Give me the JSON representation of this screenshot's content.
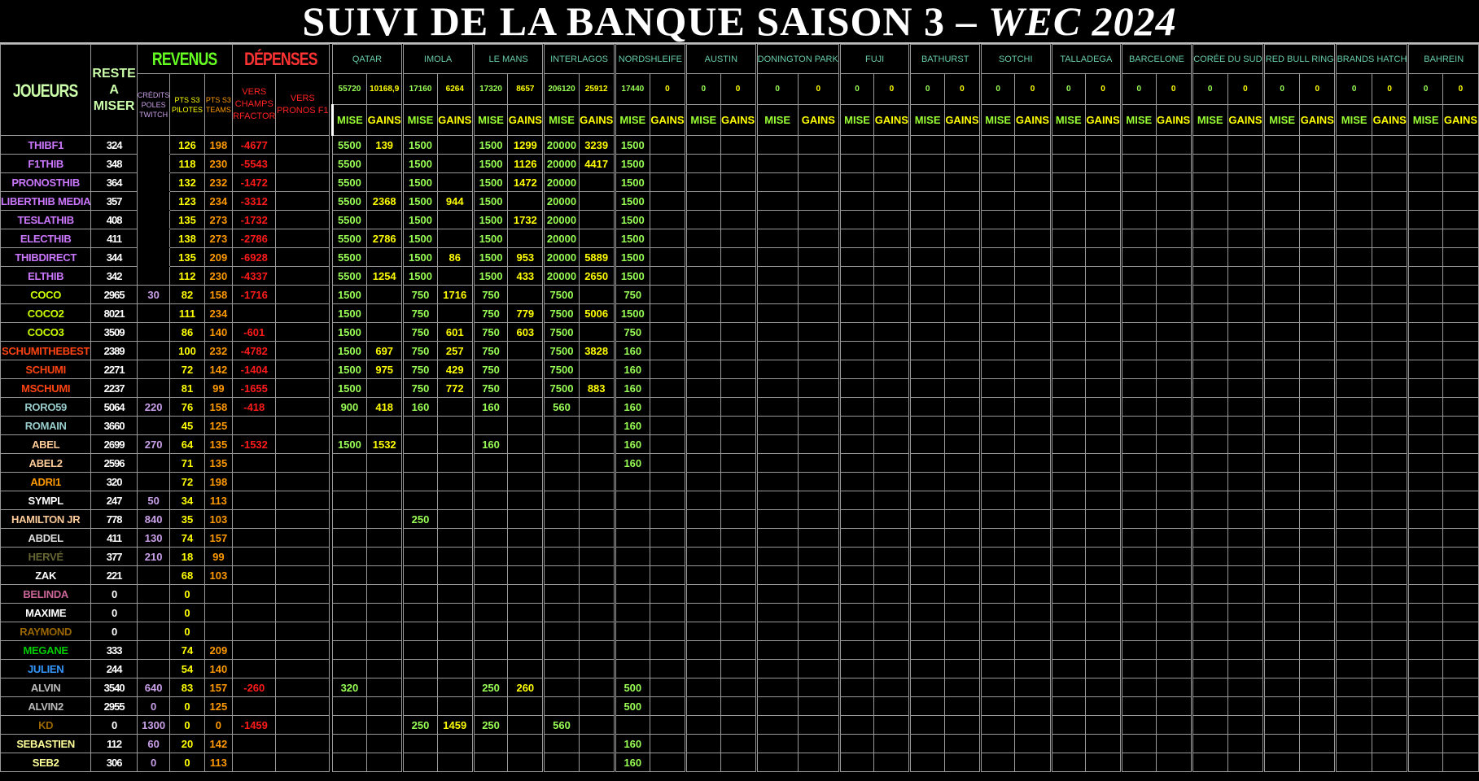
{
  "title": {
    "main": "SUIVI DE LA BANQUE SAISON 3 – ",
    "accent": "WEC 2024"
  },
  "headers": {
    "joueurs": "JOUEURS",
    "reste": "RESTE A MISER",
    "revenus": "REVENUS",
    "depenses": "DÉPENSES",
    "credits": "CRÉDITS POLES TWITCH",
    "pts_pilotes": "PTS S3 PILOTES",
    "pts_teams": "PTS S3 TEAMS",
    "vers_champs": "VERS CHAMPS RFACTOR",
    "vers_pronos": "VERS PRONOS F1",
    "mise": "MISE",
    "gains": "GAINS"
  },
  "races": [
    {
      "name": "QATAR",
      "mise_total": "55720",
      "gains_total": "10168,9"
    },
    {
      "name": "IMOLA",
      "mise_total": "17160",
      "gains_total": "6264"
    },
    {
      "name": "LE MANS",
      "mise_total": "17320",
      "gains_total": "8657"
    },
    {
      "name": "INTERLAGOS",
      "mise_total": "206120",
      "gains_total": "25912"
    },
    {
      "name": "NORDSHLEIFE",
      "mise_total": "17440",
      "gains_total": "0"
    },
    {
      "name": "AUSTIN",
      "mise_total": "0",
      "gains_total": "0"
    },
    {
      "name": "DONINGTON PARK",
      "mise_total": "0",
      "gains_total": "0"
    },
    {
      "name": "FUJI",
      "mise_total": "0",
      "gains_total": "0"
    },
    {
      "name": "BATHURST",
      "mise_total": "0",
      "gains_total": "0"
    },
    {
      "name": "SOTCHI",
      "mise_total": "0",
      "gains_total": "0"
    },
    {
      "name": "TALLADEGA",
      "mise_total": "0",
      "gains_total": "0"
    },
    {
      "name": "BARCELONE",
      "mise_total": "0",
      "gains_total": "0"
    },
    {
      "name": "CORÉE DU SUD",
      "mise_total": "0",
      "gains_total": "0"
    },
    {
      "name": "RED BULL RING",
      "mise_total": "0",
      "gains_total": "0"
    },
    {
      "name": "BRANDS HATCH",
      "mise_total": "0",
      "gains_total": "0"
    },
    {
      "name": "BAHREIN",
      "mise_total": "0",
      "gains_total": "0"
    }
  ],
  "players": [
    {
      "name": "THIBF1",
      "color": "#cc77ff",
      "reste": "324",
      "credits": "",
      "pilotes": "126",
      "teams": "198",
      "champs": "-4677",
      "pronos": "",
      "bets": [
        [
          "5500",
          "139"
        ],
        [
          "1500",
          ""
        ],
        [
          "1500",
          "1299"
        ],
        [
          "20000",
          "3239"
        ],
        [
          "1500",
          ""
        ]
      ]
    },
    {
      "name": "F1THIB",
      "color": "#cc77ff",
      "reste": "348",
      "credits": "",
      "pilotes": "118",
      "teams": "230",
      "champs": "-5543",
      "pronos": "",
      "bets": [
        [
          "5500",
          ""
        ],
        [
          "1500",
          ""
        ],
        [
          "1500",
          "1126"
        ],
        [
          "20000",
          "4417"
        ],
        [
          "1500",
          ""
        ]
      ]
    },
    {
      "name": "PRONOSTHIB",
      "color": "#cc77ff",
      "reste": "364",
      "credits": "",
      "pilotes": "132",
      "teams": "232",
      "champs": "-1472",
      "pronos": "",
      "bets": [
        [
          "5500",
          ""
        ],
        [
          "1500",
          ""
        ],
        [
          "1500",
          "1472"
        ],
        [
          "20000",
          ""
        ],
        [
          "1500",
          ""
        ]
      ]
    },
    {
      "name": "LIBERTHIB MEDIA",
      "color": "#cc77ff",
      "reste": "357",
      "credits": "",
      "pilotes": "123",
      "teams": "234",
      "champs": "-3312",
      "pronos": "",
      "bets": [
        [
          "5500",
          "2368"
        ],
        [
          "1500",
          "944"
        ],
        [
          "1500",
          ""
        ],
        [
          "20000",
          ""
        ],
        [
          "1500",
          ""
        ]
      ]
    },
    {
      "name": "TESLATHIB",
      "color": "#cc77ff",
      "reste": "408",
      "credits": "",
      "pilotes": "135",
      "teams": "273",
      "champs": "-1732",
      "pronos": "",
      "bets": [
        [
          "5500",
          ""
        ],
        [
          "1500",
          ""
        ],
        [
          "1500",
          "1732"
        ],
        [
          "20000",
          ""
        ],
        [
          "1500",
          ""
        ]
      ]
    },
    {
      "name": "ELECTHIB",
      "color": "#cc77ff",
      "reste": "411",
      "credits": "",
      "pilotes": "138",
      "teams": "273",
      "champs": "-2786",
      "pronos": "",
      "bets": [
        [
          "5500",
          "2786"
        ],
        [
          "1500",
          ""
        ],
        [
          "1500",
          ""
        ],
        [
          "20000",
          ""
        ],
        [
          "1500",
          ""
        ]
      ]
    },
    {
      "name": "THIBDIRECT",
      "color": "#cc77ff",
      "reste": "344",
      "credits": "",
      "pilotes": "135",
      "teams": "209",
      "champs": "-6928",
      "pronos": "",
      "bets": [
        [
          "5500",
          ""
        ],
        [
          "1500",
          "86"
        ],
        [
          "1500",
          "953"
        ],
        [
          "20000",
          "5889"
        ],
        [
          "1500",
          ""
        ]
      ]
    },
    {
      "name": "ELTHIB",
      "color": "#cc77ff",
      "reste": "342",
      "credits": "",
      "pilotes": "112",
      "teams": "230",
      "champs": "-4337",
      "pronos": "",
      "bets": [
        [
          "5500",
          "1254"
        ],
        [
          "1500",
          ""
        ],
        [
          "1500",
          "433"
        ],
        [
          "20000",
          "2650"
        ],
        [
          "1500",
          ""
        ]
      ]
    },
    {
      "name": "COCO",
      "color": "#ccff00",
      "reste": "2965",
      "credits": "30",
      "pilotes": "82",
      "teams": "158",
      "champs": "-1716",
      "pronos": "",
      "bets": [
        [
          "1500",
          ""
        ],
        [
          "750",
          "1716"
        ],
        [
          "750",
          ""
        ],
        [
          "7500",
          ""
        ],
        [
          "750",
          ""
        ]
      ]
    },
    {
      "name": "COCO2",
      "color": "#ccff00",
      "reste": "8021",
      "credits": "",
      "pilotes": "111",
      "teams": "234",
      "champs": "",
      "pronos": "",
      "bets": [
        [
          "1500",
          ""
        ],
        [
          "750",
          ""
        ],
        [
          "750",
          "779"
        ],
        [
          "7500",
          "5006"
        ],
        [
          "1500",
          ""
        ]
      ]
    },
    {
      "name": "COCO3",
      "color": "#ccff00",
      "reste": "3509",
      "credits": "",
      "pilotes": "86",
      "teams": "140",
      "champs": "-601",
      "pronos": "",
      "bets": [
        [
          "1500",
          ""
        ],
        [
          "750",
          "601"
        ],
        [
          "750",
          "603"
        ],
        [
          "7500",
          ""
        ],
        [
          "750",
          ""
        ]
      ]
    },
    {
      "name": "SCHUMITHEBEST",
      "color": "#ff4411",
      "reste": "2389",
      "credits": "",
      "pilotes": "100",
      "teams": "232",
      "champs": "-4782",
      "pronos": "",
      "bets": [
        [
          "1500",
          "697"
        ],
        [
          "750",
          "257"
        ],
        [
          "750",
          ""
        ],
        [
          "7500",
          "3828"
        ],
        [
          "160",
          ""
        ]
      ]
    },
    {
      "name": "SCHUMI",
      "color": "#ff4411",
      "reste": "2271",
      "credits": "",
      "pilotes": "72",
      "teams": "142",
      "champs": "-1404",
      "pronos": "",
      "bets": [
        [
          "1500",
          "975"
        ],
        [
          "750",
          "429"
        ],
        [
          "750",
          ""
        ],
        [
          "7500",
          ""
        ],
        [
          "160",
          ""
        ]
      ]
    },
    {
      "name": "MSCHUMI",
      "color": "#ff4411",
      "reste": "2237",
      "credits": "",
      "pilotes": "81",
      "teams": "99",
      "champs": "-1655",
      "pronos": "",
      "bets": [
        [
          "1500",
          ""
        ],
        [
          "750",
          "772"
        ],
        [
          "750",
          ""
        ],
        [
          "7500",
          "883"
        ],
        [
          "160",
          ""
        ]
      ]
    },
    {
      "name": "RORO59",
      "color": "#99cccc",
      "reste": "5064",
      "credits": "220",
      "pilotes": "76",
      "teams": "158",
      "champs": "-418",
      "pronos": "",
      "bets": [
        [
          "900",
          "418"
        ],
        [
          "160",
          ""
        ],
        [
          "160",
          ""
        ],
        [
          "560",
          ""
        ],
        [
          "160",
          ""
        ]
      ]
    },
    {
      "name": "ROMAIN",
      "color": "#99cccc",
      "reste": "3660",
      "credits": "",
      "pilotes": "45",
      "teams": "125",
      "champs": "",
      "pronos": "",
      "bets": [
        [
          "",
          ""
        ],
        [
          "",
          ""
        ],
        [
          "",
          ""
        ],
        [
          "",
          ""
        ],
        [
          "160",
          ""
        ]
      ]
    },
    {
      "name": "ABEL",
      "color": "#ffcc99",
      "reste": "2699",
      "credits": "270",
      "pilotes": "64",
      "teams": "135",
      "champs": "-1532",
      "pronos": "",
      "bets": [
        [
          "1500",
          "1532"
        ],
        [
          "",
          ""
        ],
        [
          "160",
          ""
        ],
        [
          "",
          ""
        ],
        [
          "160",
          ""
        ]
      ]
    },
    {
      "name": "ABEL2",
      "color": "#ffcc99",
      "reste": "2596",
      "credits": "",
      "pilotes": "71",
      "teams": "135",
      "champs": "",
      "pronos": "",
      "bets": [
        [
          "",
          ""
        ],
        [
          "",
          ""
        ],
        [
          "",
          ""
        ],
        [
          "",
          ""
        ],
        [
          "160",
          ""
        ]
      ]
    },
    {
      "name": "ADRI1",
      "color": "#ff9900",
      "reste": "320",
      "credits": "",
      "pilotes": "72",
      "teams": "198",
      "champs": "",
      "pronos": "",
      "bets": []
    },
    {
      "name": "SYMPL",
      "color": "#ffffff",
      "reste": "247",
      "credits": "50",
      "pilotes": "34",
      "teams": "113",
      "champs": "",
      "pronos": "",
      "bets": []
    },
    {
      "name": "HAMILTON JR",
      "color": "#ffcc99",
      "reste": "778",
      "credits": "840",
      "pilotes": "35",
      "teams": "103",
      "champs": "",
      "pronos": "",
      "bets": [
        [
          "",
          ""
        ],
        [
          "250",
          ""
        ]
      ]
    },
    {
      "name": "ABDEL",
      "color": "#dddddd",
      "reste": "411",
      "credits": "130",
      "pilotes": "74",
      "teams": "157",
      "champs": "",
      "pronos": "",
      "bets": []
    },
    {
      "name": "HERVÉ",
      "color": "#666633",
      "reste": "377",
      "credits": "210",
      "pilotes": "18",
      "teams": "99",
      "champs": "",
      "pronos": "",
      "bets": []
    },
    {
      "name": "ZAK",
      "color": "#ffffff",
      "reste": "221",
      "credits": "",
      "pilotes": "68",
      "teams": "103",
      "champs": "",
      "pronos": "",
      "bets": []
    },
    {
      "name": "BELINDA",
      "color": "#cc6699",
      "reste": "0",
      "credits": "",
      "pilotes": "0",
      "teams": "",
      "champs": "",
      "pronos": "",
      "bets": []
    },
    {
      "name": "MAXIME",
      "color": "#ffffff",
      "reste": "0",
      "credits": "",
      "pilotes": "0",
      "teams": "",
      "champs": "",
      "pronos": "",
      "bets": []
    },
    {
      "name": "RAYMOND",
      "color": "#996600",
      "reste": "0",
      "credits": "",
      "pilotes": "0",
      "teams": "",
      "champs": "",
      "pronos": "",
      "bets": []
    },
    {
      "name": "MEGANE",
      "color": "#00cc00",
      "reste": "333",
      "credits": "",
      "pilotes": "74",
      "teams": "209",
      "champs": "",
      "pronos": "",
      "bets": []
    },
    {
      "name": "JULIEN",
      "color": "#3399ff",
      "reste": "244",
      "credits": "",
      "pilotes": "54",
      "teams": "140",
      "champs": "",
      "pronos": "",
      "bets": []
    },
    {
      "name": "ALVIN",
      "color": "#bbbbbb",
      "reste": "3540",
      "credits": "640",
      "pilotes": "83",
      "teams": "157",
      "champs": "-260",
      "pronos": "",
      "bets": [
        [
          "320",
          ""
        ],
        [
          "",
          ""
        ],
        [
          "250",
          "260"
        ],
        [
          "",
          ""
        ],
        [
          "500",
          ""
        ]
      ]
    },
    {
      "name": "ALVIN2",
      "color": "#bbbbbb",
      "reste": "2955",
      "credits": "0",
      "pilotes": "0",
      "teams": "125",
      "champs": "",
      "pronos": "",
      "bets": [
        [
          "",
          ""
        ],
        [
          "",
          ""
        ],
        [
          "",
          ""
        ],
        [
          "",
          ""
        ],
        [
          "500",
          ""
        ]
      ]
    },
    {
      "name": "KD",
      "color": "#996600",
      "reste": "0",
      "credits": "1300",
      "pilotes": "0",
      "teams": "0",
      "champs": "-1459",
      "pronos": "",
      "bets": [
        [
          "",
          ""
        ],
        [
          "250",
          "1459"
        ],
        [
          "250",
          ""
        ],
        [
          "560",
          ""
        ]
      ]
    },
    {
      "name": "SEBASTIEN",
      "color": "#ffff99",
      "reste": "112",
      "credits": "60",
      "pilotes": "20",
      "teams": "142",
      "champs": "",
      "pronos": "",
      "bets": [
        [
          "",
          ""
        ],
        [
          "",
          ""
        ],
        [
          "",
          ""
        ],
        [
          "",
          ""
        ],
        [
          "160",
          ""
        ]
      ]
    },
    {
      "name": "SEB2",
      "color": "#ffff99",
      "reste": "306",
      "credits": "0",
      "pilotes": "0",
      "teams": "113",
      "champs": "",
      "pronos": "",
      "bets": [
        [
          "",
          ""
        ],
        [
          "",
          ""
        ],
        [
          "",
          ""
        ],
        [
          "",
          ""
        ],
        [
          "160",
          ""
        ]
      ]
    }
  ]
}
